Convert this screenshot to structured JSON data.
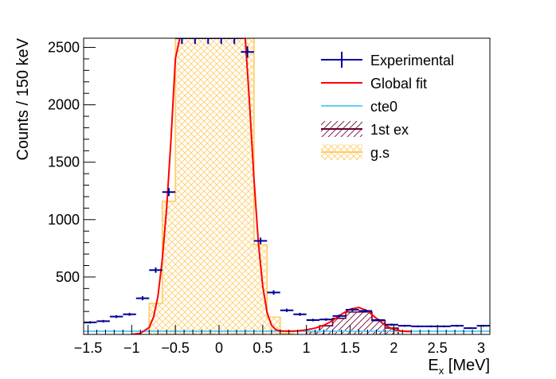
{
  "chart_data": {
    "type": "histogram",
    "title": "",
    "xlabel_main": "E",
    "xlabel_sub": "x",
    "xlabel_unit": " [MeV]",
    "ylabel": "Counts / 150 keV",
    "xlim": [
      -1.55,
      3.1
    ],
    "ylim": [
      0,
      2580
    ],
    "x_ticks": [
      -1.5,
      -1,
      -0.5,
      0,
      0.5,
      1,
      1.5,
      2,
      2.5,
      3
    ],
    "x_tick_labels": [
      "−1.5",
      "−1",
      "−0.5",
      "0",
      "0.5",
      "1",
      "1.5",
      "2",
      "2.5",
      "3"
    ],
    "y_ticks": [
      500,
      1000,
      1500,
      2000,
      2500
    ],
    "y_tick_labels": [
      "500",
      "1000",
      "1500",
      "2000",
      "2500"
    ],
    "bin_width": 0.15,
    "legend": {
      "placement": "top-right",
      "entries": [
        {
          "label": "Experimental",
          "color": "#000099",
          "style": "errorbar"
        },
        {
          "label": "Global fit",
          "color": "#ff0000",
          "style": "line"
        },
        {
          "label": "cte0",
          "color": "#66ccff",
          "style": "line"
        },
        {
          "label": "1st ex",
          "color": "#660033",
          "style": "hatch"
        },
        {
          "label": "g.s",
          "color": "#ffcc66",
          "style": "crosshatch"
        }
      ]
    },
    "series": [
      {
        "name": "Experimental",
        "color": "#000099",
        "x": [
          -1.475,
          -1.325,
          -1.175,
          -1.025,
          -0.875,
          -0.725,
          -0.575,
          -0.425,
          -0.275,
          -0.125,
          0.025,
          0.175,
          0.325,
          0.475,
          0.625,
          0.775,
          0.925,
          1.075,
          1.225,
          1.375,
          1.525,
          1.675,
          1.825,
          1.975,
          2.125,
          2.275,
          2.425,
          2.575,
          2.725,
          2.875,
          3.025
        ],
        "y": [
          105,
          115,
          155,
          175,
          315,
          560,
          1240,
          2580,
          2580,
          2580,
          2580,
          2580,
          2460,
          815,
          365,
          210,
          175,
          125,
          130,
          160,
          215,
          205,
          125,
          85,
          75,
          70,
          70,
          70,
          75,
          55,
          75
        ]
      },
      {
        "name": "Global fit",
        "color": "#ff0000",
        "x": [
          -1.0,
          -0.9,
          -0.8,
          -0.75,
          -0.7,
          -0.65,
          -0.6,
          -0.55,
          -0.5,
          -0.45,
          0.3,
          0.35,
          0.4,
          0.45,
          0.5,
          0.55,
          0.6,
          0.65,
          0.7,
          0.8,
          0.9,
          1.0,
          1.1,
          1.2,
          1.3,
          1.4,
          1.5,
          1.6,
          1.7,
          1.8,
          1.9,
          2.0,
          2.1,
          2.2
        ],
        "y": [
          0,
          10,
          60,
          150,
          330,
          650,
          1100,
          1700,
          2400,
          2580,
          2580,
          2000,
          1350,
          800,
          420,
          190,
          80,
          40,
          30,
          28,
          30,
          40,
          55,
          80,
          120,
          175,
          220,
          235,
          205,
          140,
          80,
          42,
          28,
          25
        ]
      },
      {
        "name": "cte0",
        "color": "#66ccff",
        "x": [
          -1.55,
          3.1
        ],
        "y": [
          28,
          28
        ]
      },
      {
        "name": "g.s",
        "color": "#ffcc66",
        "edges": [
          -0.8,
          -0.65,
          -0.5,
          -0.35,
          -0.2,
          -0.05,
          0.1,
          0.25,
          0.4,
          0.55,
          0.7,
          0.85
        ],
        "values": [
          270,
          1160,
          2580,
          2580,
          2580,
          2580,
          2580,
          2580,
          780,
          150,
          10
        ]
      },
      {
        "name": "1st ex",
        "color": "#660033",
        "edges": [
          1.0,
          1.15,
          1.3,
          1.45,
          1.6,
          1.75,
          1.9,
          2.05
        ],
        "values": [
          25,
          75,
          140,
          195,
          195,
          120,
          55
        ]
      }
    ]
  }
}
